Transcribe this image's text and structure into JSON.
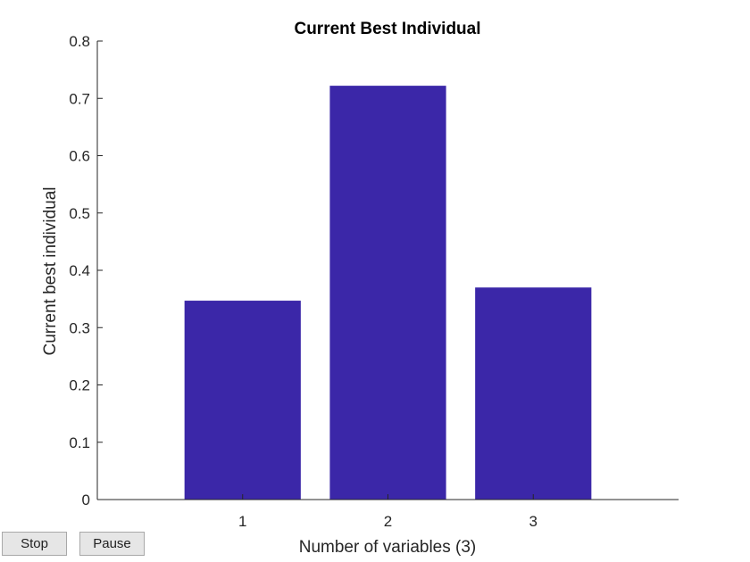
{
  "chart_data": {
    "type": "bar",
    "title": "Current Best Individual",
    "xlabel": "Number of variables (3)",
    "ylabel": "Current best individual",
    "categories": [
      "1",
      "2",
      "3"
    ],
    "values": [
      0.347,
      0.722,
      0.37
    ],
    "ylim": [
      0,
      0.8
    ],
    "xlim": [
      0,
      4
    ],
    "yticks": [
      0,
      0.1,
      0.2,
      0.3,
      0.4,
      0.5,
      0.6,
      0.7,
      0.8
    ],
    "ytick_labels": [
      "0",
      "0.1",
      "0.2",
      "0.3",
      "0.4",
      "0.5",
      "0.6",
      "0.7",
      "0.8"
    ],
    "grid": false,
    "bar_color": "#3b27a8"
  },
  "controls": {
    "stop_label": "Stop",
    "pause_label": "Pause"
  }
}
